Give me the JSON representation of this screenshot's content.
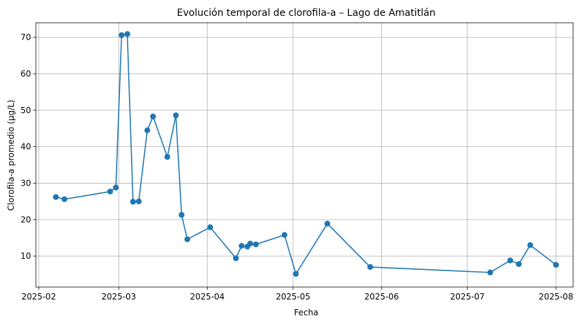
{
  "chart_data": {
    "type": "line",
    "title": "Evolución temporal de clorofila-a – Lago de Amatitlán",
    "xlabel": "Fecha",
    "ylabel": "Clorofila-a promedio (µg/L)",
    "x_is_date": true,
    "xlim": [
      "2025-01-31",
      "2025-08-07"
    ],
    "ylim": [
      1.5,
      74
    ],
    "x_ticks": [
      "2025-02-01",
      "2025-03-01",
      "2025-04-01",
      "2025-05-01",
      "2025-06-01",
      "2025-07-01",
      "2025-08-01"
    ],
    "x_tick_labels": [
      "2025-02",
      "2025-03",
      "2025-04",
      "2025-05",
      "2025-06",
      "2025-07",
      "2025-08"
    ],
    "y_ticks": [
      10,
      20,
      30,
      40,
      50,
      60,
      70
    ],
    "y_tick_labels": [
      "10",
      "20",
      "30",
      "40",
      "50",
      "60",
      "70"
    ],
    "grid": true,
    "series": [
      {
        "color": "#1f77b4",
        "marker": "circle",
        "points": [
          {
            "x": "2025-02-07",
            "y": 26.2
          },
          {
            "x": "2025-02-10",
            "y": 25.6
          },
          {
            "x": "2025-02-26",
            "y": 27.7
          },
          {
            "x": "2025-02-28",
            "y": 28.8
          },
          {
            "x": "2025-03-02",
            "y": 70.6
          },
          {
            "x": "2025-03-04",
            "y": 70.9
          },
          {
            "x": "2025-03-06",
            "y": 24.9
          },
          {
            "x": "2025-03-08",
            "y": 25.0
          },
          {
            "x": "2025-03-11",
            "y": 44.5
          },
          {
            "x": "2025-03-13",
            "y": 48.3
          },
          {
            "x": "2025-03-18",
            "y": 37.2
          },
          {
            "x": "2025-03-21",
            "y": 48.6
          },
          {
            "x": "2025-03-23",
            "y": 21.3
          },
          {
            "x": "2025-03-25",
            "y": 14.6
          },
          {
            "x": "2025-04-02",
            "y": 17.9
          },
          {
            "x": "2025-04-11",
            "y": 9.4
          },
          {
            "x": "2025-04-13",
            "y": 12.8
          },
          {
            "x": "2025-04-15",
            "y": 12.6
          },
          {
            "x": "2025-04-16",
            "y": 13.4
          },
          {
            "x": "2025-04-18",
            "y": 13.2
          },
          {
            "x": "2025-04-28",
            "y": 15.8
          },
          {
            "x": "2025-05-02",
            "y": 5.1
          },
          {
            "x": "2025-05-13",
            "y": 18.9
          },
          {
            "x": "2025-05-28",
            "y": 7.0
          },
          {
            "x": "2025-07-09",
            "y": 5.5
          },
          {
            "x": "2025-07-16",
            "y": 8.8
          },
          {
            "x": "2025-07-19",
            "y": 7.8
          },
          {
            "x": "2025-07-23",
            "y": 13.0
          },
          {
            "x": "2025-08-01",
            "y": 7.6
          }
        ]
      }
    ]
  }
}
